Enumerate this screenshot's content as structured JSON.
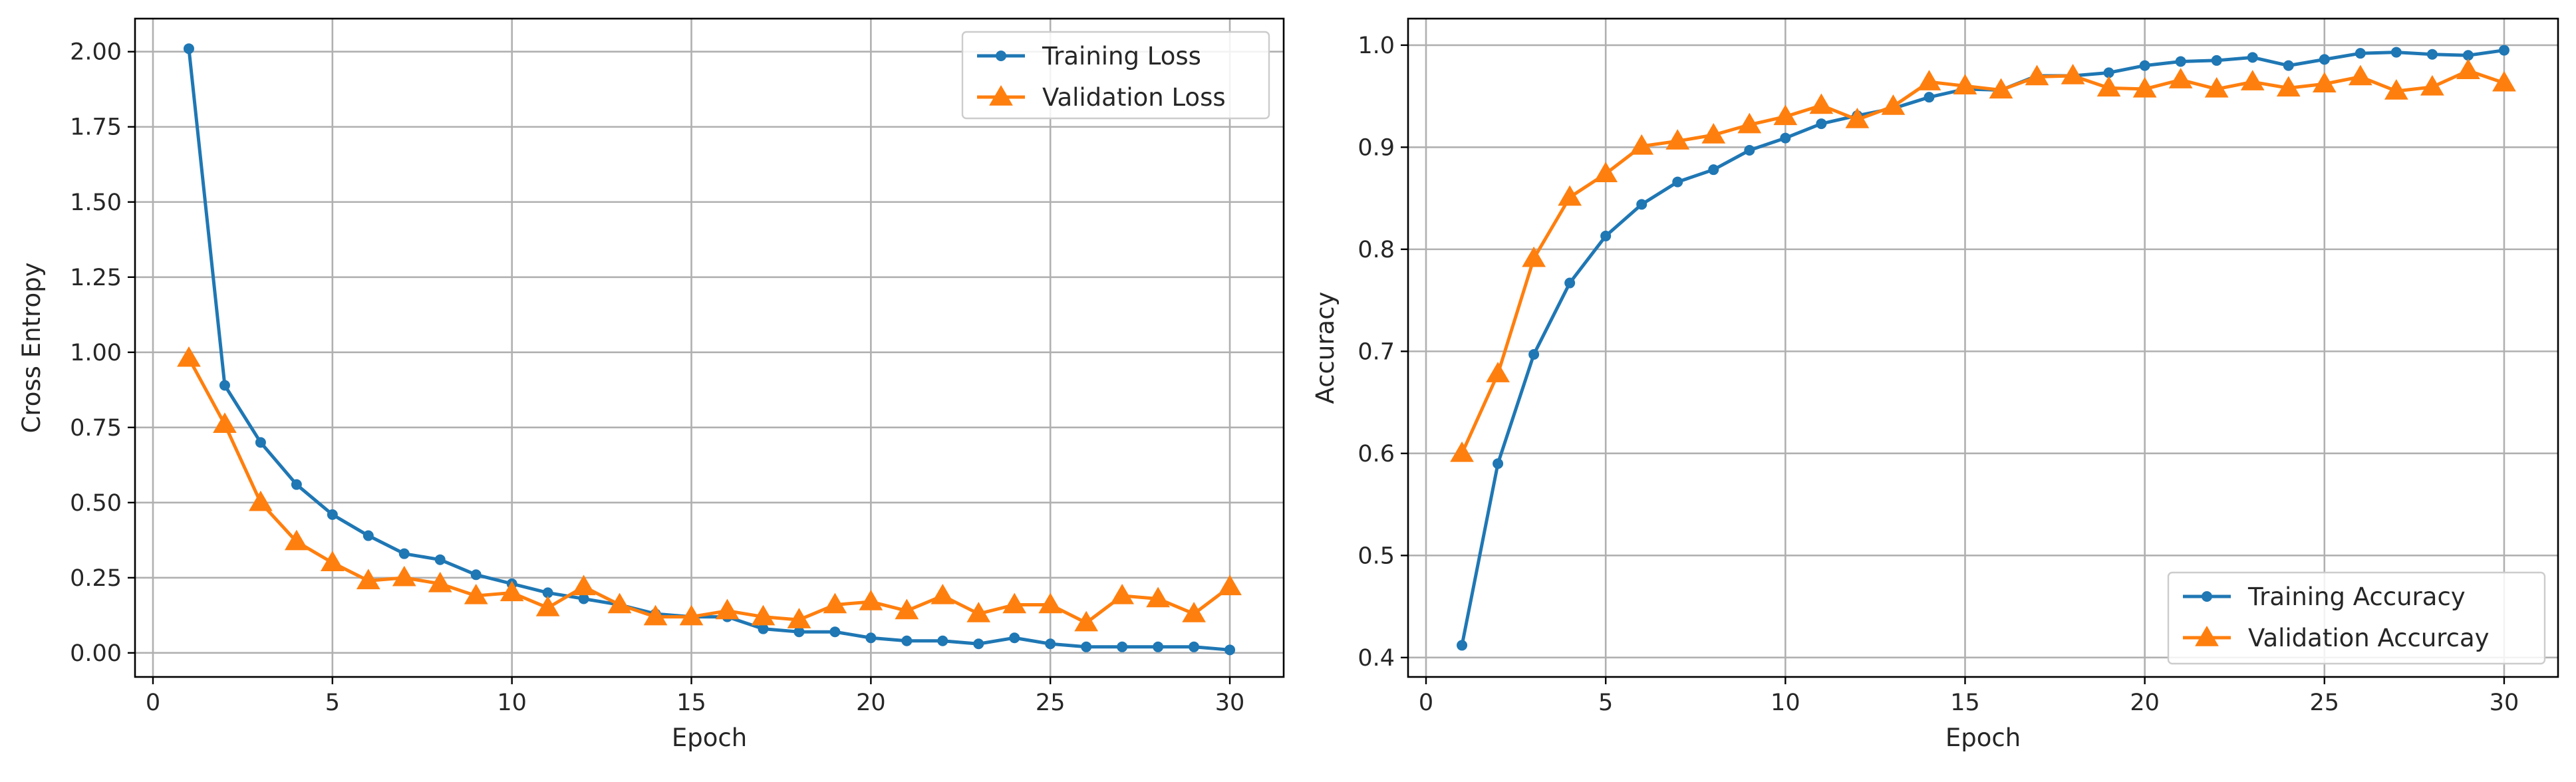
{
  "chart_data": [
    {
      "type": "line",
      "title": "",
      "xlabel": "Epoch",
      "ylabel": "Cross Entropy",
      "xlim": [
        -0.5,
        31.5
      ],
      "ylim": [
        -0.08,
        2.11
      ],
      "xticks": [
        0,
        5,
        10,
        15,
        20,
        25,
        30
      ],
      "yticks": [
        0.0,
        0.25,
        0.5,
        0.75,
        1.0,
        1.25,
        1.5,
        1.75,
        2.0
      ],
      "ytick_labels": [
        "0.00",
        "0.25",
        "0.50",
        "0.75",
        "1.00",
        "1.25",
        "1.50",
        "1.75",
        "2.00"
      ],
      "grid": true,
      "legend_position": "top-right",
      "x": [
        1,
        2,
        3,
        4,
        5,
        6,
        7,
        8,
        9,
        10,
        11,
        12,
        13,
        14,
        15,
        16,
        17,
        18,
        19,
        20,
        21,
        22,
        23,
        24,
        25,
        26,
        27,
        28,
        29,
        30
      ],
      "series": [
        {
          "name": "Training Loss",
          "color": "#1f77b4",
          "marker": "circle",
          "values": [
            2.01,
            0.89,
            0.7,
            0.56,
            0.46,
            0.39,
            0.33,
            0.31,
            0.26,
            0.23,
            0.2,
            0.18,
            0.16,
            0.13,
            0.12,
            0.12,
            0.08,
            0.07,
            0.07,
            0.05,
            0.04,
            0.04,
            0.03,
            0.05,
            0.03,
            0.02,
            0.02,
            0.02,
            0.02,
            0.01
          ]
        },
        {
          "name": "Validation Loss",
          "color": "#ff7f0e",
          "marker": "triangle",
          "values": [
            0.98,
            0.76,
            0.5,
            0.37,
            0.3,
            0.24,
            0.25,
            0.23,
            0.19,
            0.2,
            0.15,
            0.22,
            0.16,
            0.12,
            0.12,
            0.14,
            0.12,
            0.11,
            0.16,
            0.17,
            0.14,
            0.19,
            0.13,
            0.16,
            0.16,
            0.1,
            0.19,
            0.18,
            0.13,
            0.22
          ]
        }
      ]
    },
    {
      "type": "line",
      "title": "",
      "xlabel": "Epoch",
      "ylabel": "Accuracy",
      "xlim": [
        -0.5,
        31.5
      ],
      "ylim": [
        0.381,
        1.026
      ],
      "xticks": [
        0,
        5,
        10,
        15,
        20,
        25,
        30
      ],
      "yticks": [
        0.4,
        0.5,
        0.6,
        0.7,
        0.8,
        0.9,
        1.0
      ],
      "ytick_labels": [
        "0.4",
        "0.5",
        "0.6",
        "0.7",
        "0.8",
        "0.9",
        "1.0"
      ],
      "grid": true,
      "legend_position": "bottom-right",
      "x": [
        1,
        2,
        3,
        4,
        5,
        6,
        7,
        8,
        9,
        10,
        11,
        12,
        13,
        14,
        15,
        16,
        17,
        18,
        19,
        20,
        21,
        22,
        23,
        24,
        25,
        26,
        27,
        28,
        29,
        30
      ],
      "series": [
        {
          "name": "Training Accuracy",
          "color": "#1f77b4",
          "marker": "circle",
          "values": [
            0.412,
            0.59,
            0.697,
            0.767,
            0.813,
            0.844,
            0.866,
            0.878,
            0.897,
            0.909,
            0.923,
            0.931,
            0.938,
            0.949,
            0.957,
            0.956,
            0.97,
            0.97,
            0.973,
            0.98,
            0.984,
            0.985,
            0.988,
            0.98,
            0.986,
            0.992,
            0.993,
            0.991,
            0.99,
            0.995
          ]
        },
        {
          "name": "Validation Accurcay",
          "color": "#ff7f0e",
          "marker": "triangle",
          "values": [
            0.6,
            0.678,
            0.791,
            0.851,
            0.874,
            0.901,
            0.906,
            0.912,
            0.922,
            0.93,
            0.941,
            0.927,
            0.94,
            0.964,
            0.96,
            0.956,
            0.969,
            0.97,
            0.958,
            0.957,
            0.966,
            0.957,
            0.964,
            0.958,
            0.962,
            0.969,
            0.955,
            0.959,
            0.975,
            0.963
          ]
        }
      ]
    }
  ]
}
